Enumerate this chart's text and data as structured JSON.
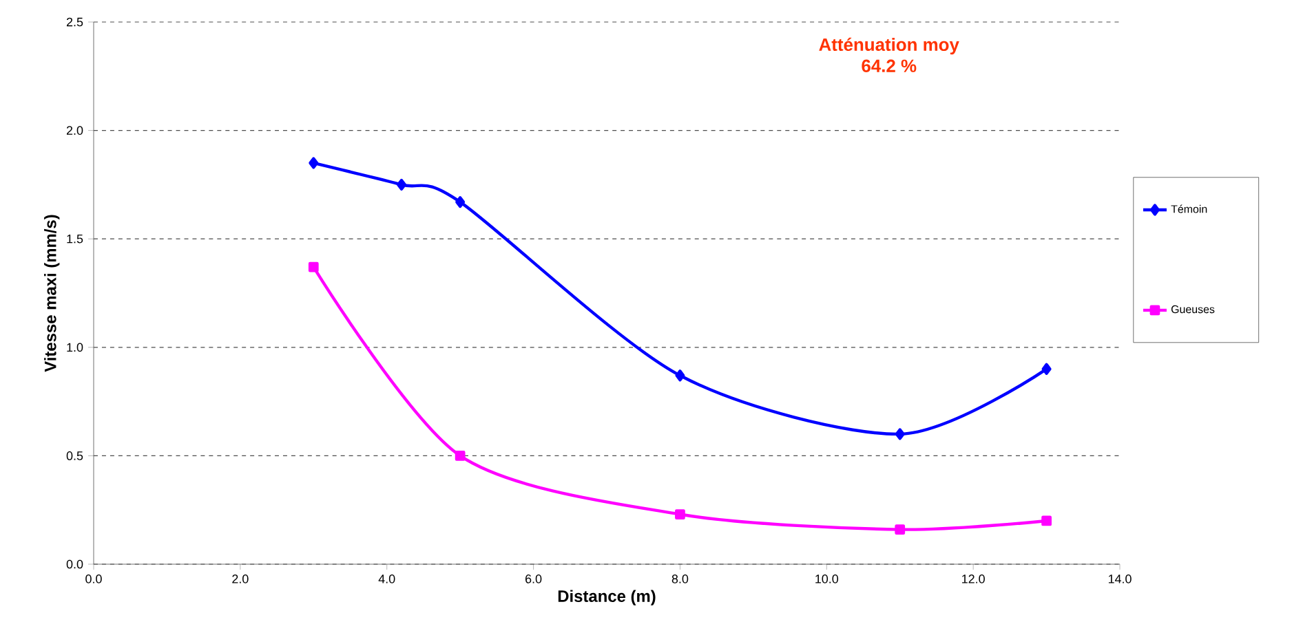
{
  "chart_data": {
    "type": "line",
    "xlabel": "Distance (m)",
    "ylabel": "Vitesse maxi (mm/s)",
    "annotations": [
      "Atténuation moy",
      "64.2 %"
    ],
    "series": [
      {
        "name": "Témoin",
        "color": "#0000ff",
        "marker": "diamond",
        "x": [
          3,
          4.2,
          5,
          8,
          11,
          13
        ],
        "values": [
          1.85,
          1.75,
          1.67,
          0.87,
          0.6,
          0.9
        ]
      },
      {
        "name": "Gueuses",
        "color": "#ff00ff",
        "marker": "square",
        "x": [
          3,
          5,
          8,
          11,
          13
        ],
        "values": [
          1.37,
          0.5,
          0.23,
          0.16,
          0.2
        ]
      }
    ],
    "xlim": [
      0,
      14
    ],
    "ylim": [
      0,
      2.5
    ],
    "xticks": [
      {
        "value": 0,
        "label": "0.0"
      },
      {
        "value": 2,
        "label": "2.0"
      },
      {
        "value": 4,
        "label": "4.0"
      },
      {
        "value": 6,
        "label": "6.0"
      },
      {
        "value": 8,
        "label": "8.0"
      },
      {
        "value": 10,
        "label": "10.0"
      },
      {
        "value": 12,
        "label": "12.0"
      },
      {
        "value": 14,
        "label": "14.0"
      }
    ],
    "yticks": [
      {
        "value": 0,
        "label": "0.0"
      },
      {
        "value": 0.5,
        "label": "0.5"
      },
      {
        "value": 1,
        "label": "1.0"
      },
      {
        "value": 1.5,
        "label": "1.5"
      },
      {
        "value": 2,
        "label": "2.0"
      },
      {
        "value": 2.5,
        "label": "2.5"
      }
    ],
    "grid": "y",
    "legend": "right",
    "line_style": "solid"
  }
}
